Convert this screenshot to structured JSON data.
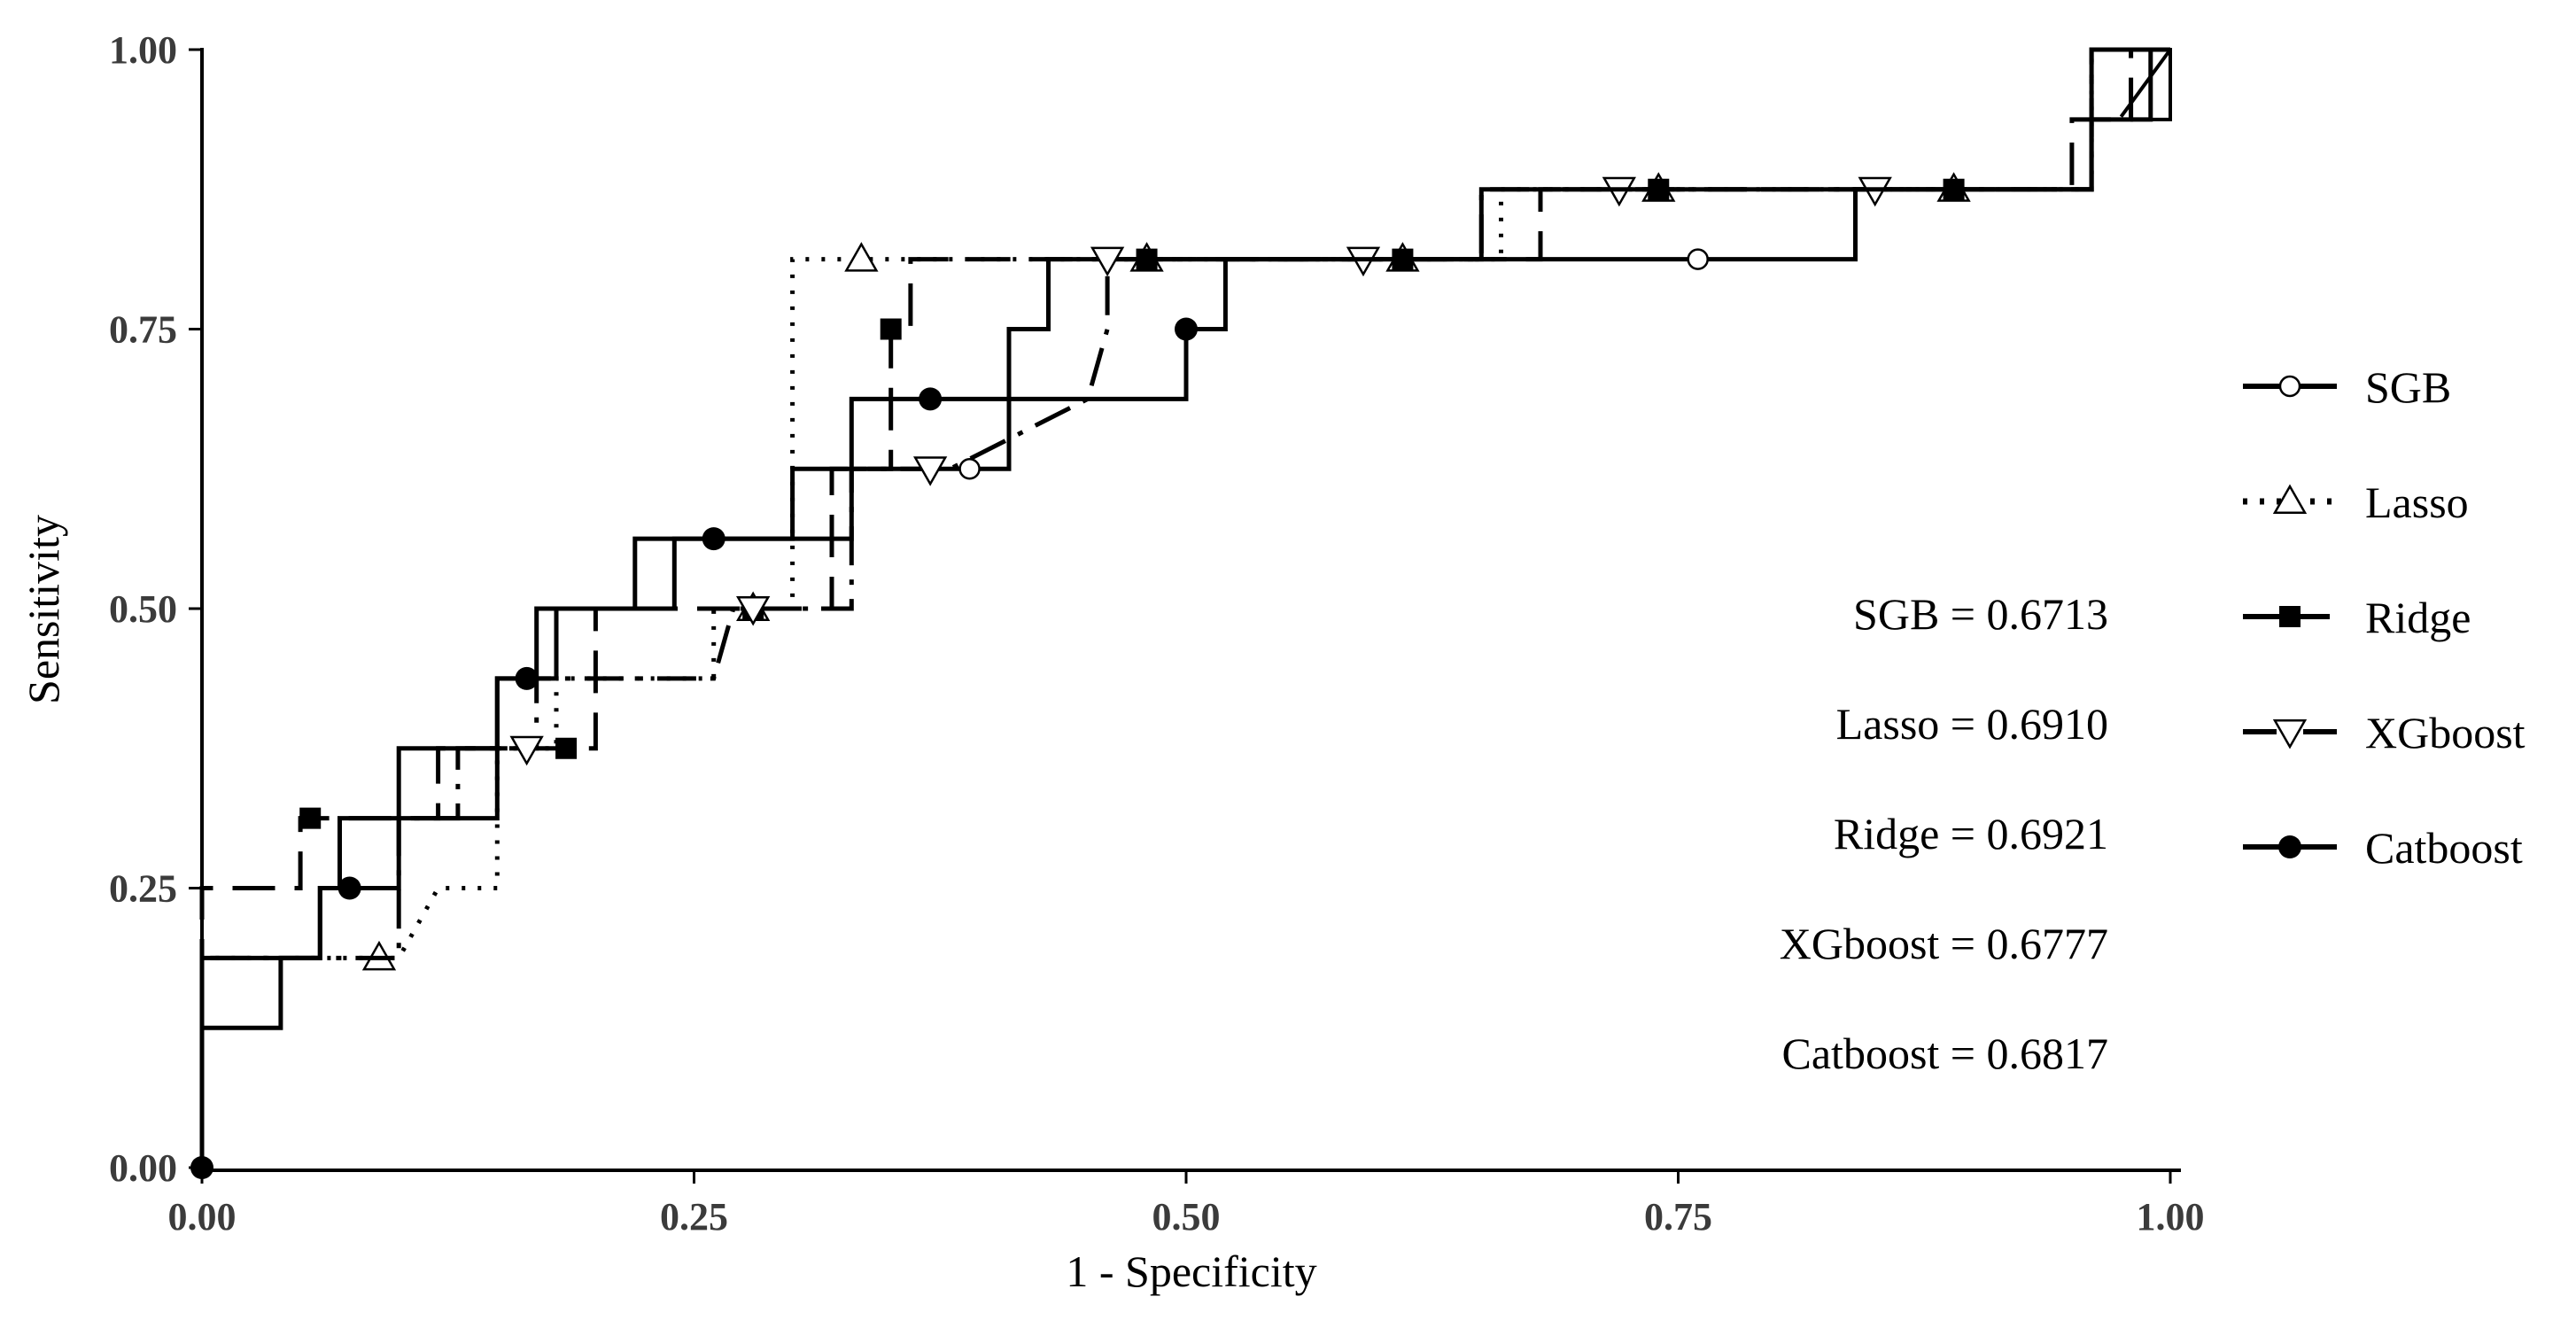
{
  "chart_data": {
    "type": "line",
    "title": "",
    "xlabel": "1 - Specificity",
    "ylabel": "Sensitivity",
    "xlim": [
      0,
      1
    ],
    "ylim": [
      0,
      1
    ],
    "xticks": [
      "0.00",
      "0.25",
      "0.50",
      "0.75",
      "1.00"
    ],
    "yticks": [
      "0.00",
      "0.25",
      "0.50",
      "0.75",
      "1.00"
    ],
    "grid": false,
    "legend_position": "right",
    "series": [
      {
        "name": "SGB",
        "dash": "solid",
        "marker": "circle-open",
        "points": [
          [
            0,
            0
          ],
          [
            0,
            0.125
          ],
          [
            0.04,
            0.125
          ],
          [
            0.04,
            0.1875
          ],
          [
            0.06,
            0.1875
          ],
          [
            0.06,
            0.25
          ],
          [
            0.1,
            0.25
          ],
          [
            0.1,
            0.375
          ],
          [
            0.15,
            0.375
          ],
          [
            0.15,
            0.4375
          ],
          [
            0.17,
            0.4375
          ],
          [
            0.17,
            0.5
          ],
          [
            0.22,
            0.5
          ],
          [
            0.22,
            0.5625
          ],
          [
            0.3,
            0.5625
          ],
          [
            0.3,
            0.625
          ],
          [
            0.41,
            0.625
          ],
          [
            0.41,
            0.75
          ],
          [
            0.43,
            0.75
          ],
          [
            0.43,
            0.8125
          ],
          [
            0.84,
            0.8125
          ],
          [
            0.84,
            0.875
          ],
          [
            0.96,
            0.875
          ],
          [
            0.96,
            1
          ],
          [
            1,
            1
          ]
        ],
        "marker_points": [
          [
            0.39,
            0.625
          ],
          [
            0.76,
            0.8125
          ]
        ]
      },
      {
        "name": "Lasso",
        "dash": "dotted",
        "marker": "triangle-up-open",
        "points": [
          [
            0,
            0
          ],
          [
            0,
            0.1875
          ],
          [
            0.1,
            0.1875
          ],
          [
            0.12,
            0.25
          ],
          [
            0.15,
            0.25
          ],
          [
            0.15,
            0.375
          ],
          [
            0.18,
            0.375
          ],
          [
            0.18,
            0.4375
          ],
          [
            0.26,
            0.4375
          ],
          [
            0.26,
            0.5
          ],
          [
            0.3,
            0.5
          ],
          [
            0.3,
            0.8125
          ],
          [
            0.66,
            0.8125
          ],
          [
            0.66,
            0.875
          ],
          [
            0.96,
            0.875
          ],
          [
            0.96,
            1
          ],
          [
            1,
            1
          ]
        ],
        "marker_points": [
          [
            0.09,
            0.1875
          ],
          [
            0.28,
            0.5
          ],
          [
            0.335,
            0.8125
          ],
          [
            0.48,
            0.8125
          ],
          [
            0.61,
            0.8125
          ],
          [
            0.74,
            0.875
          ],
          [
            0.89,
            0.875
          ]
        ]
      },
      {
        "name": "Ridge",
        "dash": "long-dash",
        "marker": "square-filled",
        "points": [
          [
            0,
            0
          ],
          [
            0,
            0.25
          ],
          [
            0.05,
            0.25
          ],
          [
            0.05,
            0.3125
          ],
          [
            0.12,
            0.3125
          ],
          [
            0.12,
            0.375
          ],
          [
            0.2,
            0.375
          ],
          [
            0.2,
            0.5
          ],
          [
            0.32,
            0.5
          ],
          [
            0.32,
            0.625
          ],
          [
            0.35,
            0.625
          ],
          [
            0.35,
            0.75
          ],
          [
            0.36,
            0.75
          ],
          [
            0.36,
            0.8125
          ],
          [
            0.68,
            0.8125
          ],
          [
            0.68,
            0.875
          ],
          [
            0.95,
            0.875
          ],
          [
            0.95,
            0.9375
          ],
          [
            0.98,
            0.9375
          ],
          [
            0.98,
            1
          ],
          [
            1,
            1
          ]
        ],
        "marker_points": [
          [
            0.055,
            0.3125
          ],
          [
            0.185,
            0.375
          ],
          [
            0.28,
            0.5
          ],
          [
            0.35,
            0.75
          ],
          [
            0.48,
            0.8125
          ],
          [
            0.61,
            0.8125
          ],
          [
            0.74,
            0.875
          ],
          [
            0.89,
            0.875
          ]
        ]
      },
      {
        "name": "XGboost",
        "dash": "dash-dot",
        "marker": "triangle-down-open",
        "points": [
          [
            0,
            0
          ],
          [
            0,
            0.1875
          ],
          [
            0.1,
            0.1875
          ],
          [
            0.1,
            0.3125
          ],
          [
            0.13,
            0.3125
          ],
          [
            0.13,
            0.375
          ],
          [
            0.17,
            0.375
          ],
          [
            0.17,
            0.4375
          ],
          [
            0.26,
            0.4375
          ],
          [
            0.27,
            0.5
          ],
          [
            0.33,
            0.5
          ],
          [
            0.33,
            0.625
          ],
          [
            0.38,
            0.625
          ],
          [
            0.45,
            0.6875
          ],
          [
            0.46,
            0.75
          ],
          [
            0.46,
            0.8125
          ],
          [
            0.65,
            0.8125
          ],
          [
            0.65,
            0.875
          ],
          [
            0.96,
            0.875
          ],
          [
            0.96,
            1
          ],
          [
            1,
            1
          ]
        ],
        "marker_points": [
          [
            0.165,
            0.375
          ],
          [
            0.28,
            0.5
          ],
          [
            0.37,
            0.625
          ],
          [
            0.46,
            0.8125
          ],
          [
            0.59,
            0.8125
          ],
          [
            0.72,
            0.875
          ],
          [
            0.85,
            0.875
          ]
        ]
      },
      {
        "name": "Catboost",
        "dash": "solid",
        "marker": "circle-filled",
        "points": [
          [
            0,
            0
          ],
          [
            0,
            0.1875
          ],
          [
            0.06,
            0.1875
          ],
          [
            0.06,
            0.25
          ],
          [
            0.07,
            0.25
          ],
          [
            0.07,
            0.3125
          ],
          [
            0.15,
            0.3125
          ],
          [
            0.15,
            0.4375
          ],
          [
            0.18,
            0.4375
          ],
          [
            0.18,
            0.5
          ],
          [
            0.24,
            0.5
          ],
          [
            0.24,
            0.5625
          ],
          [
            0.33,
            0.5625
          ],
          [
            0.33,
            0.6875
          ],
          [
            0.5,
            0.6875
          ],
          [
            0.5,
            0.75
          ],
          [
            0.52,
            0.75
          ],
          [
            0.52,
            0.8125
          ],
          [
            0.65,
            0.8125
          ],
          [
            0.65,
            0.875
          ],
          [
            0.96,
            0.875
          ],
          [
            0.96,
            0.9375
          ],
          [
            0.99,
            0.9375
          ],
          [
            0.99,
            1
          ],
          [
            1,
            1
          ]
        ],
        "marker_points": [
          [
            0,
            0
          ],
          [
            0.075,
            0.25
          ],
          [
            0.165,
            0.4375
          ],
          [
            0.26,
            0.5625
          ],
          [
            0.37,
            0.6875
          ],
          [
            0.5,
            0.75
          ]
        ]
      }
    ],
    "auc": [
      {
        "label": "SGB = 0.6713"
      },
      {
        "label": "Lasso = 0.6910"
      },
      {
        "label": "Ridge = 0.6921"
      },
      {
        "label": "XGboost = 0.6777"
      },
      {
        "label": "Catboost = 0.6817"
      }
    ],
    "colors": {
      "line": "#000000",
      "tick_text": "#3b3b3b",
      "background": "#ffffff"
    }
  }
}
